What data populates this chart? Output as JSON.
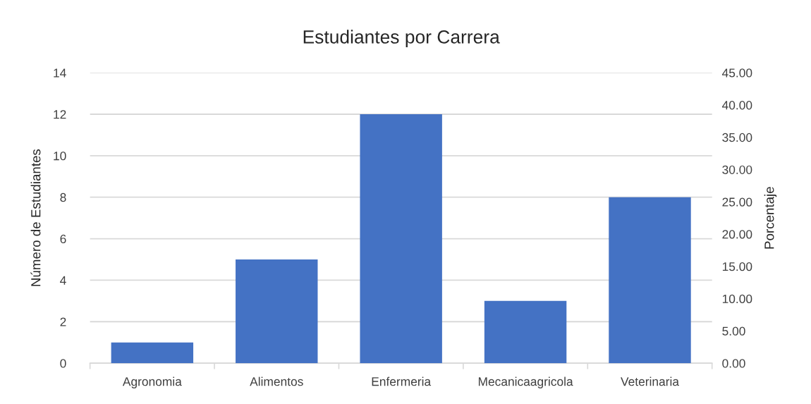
{
  "chart_data": {
    "type": "bar",
    "title": "Estudiantes por Carrera",
    "ylabel": "Número de Estudiantes",
    "y2label": "Porcentaje",
    "categories": [
      "Agronomia",
      "Alimentos",
      "Enfermeria",
      "Mecanicaagricola",
      "Veterinaria"
    ],
    "values": [
      1,
      5,
      12,
      3,
      8
    ],
    "color": "#4472c4",
    "ylim": [
      0,
      14
    ],
    "yticks": [
      0,
      2,
      4,
      6,
      8,
      10,
      12,
      14
    ],
    "y2lim": [
      0,
      45
    ],
    "y2ticks": [
      {
        "value": 0,
        "label": "0.00"
      },
      {
        "value": 5,
        "label": "5.00"
      },
      {
        "value": 10,
        "label": "10.00"
      },
      {
        "value": 15,
        "label": "15.00"
      },
      {
        "value": 20,
        "label": "20.00"
      },
      {
        "value": 25,
        "label": "25.00"
      },
      {
        "value": 30,
        "label": "30.00"
      },
      {
        "value": 35,
        "label": "35.00"
      },
      {
        "value": 40,
        "label": "40.00"
      },
      {
        "value": 45,
        "label": "45.00"
      }
    ],
    "grid": "y",
    "legend": false
  }
}
